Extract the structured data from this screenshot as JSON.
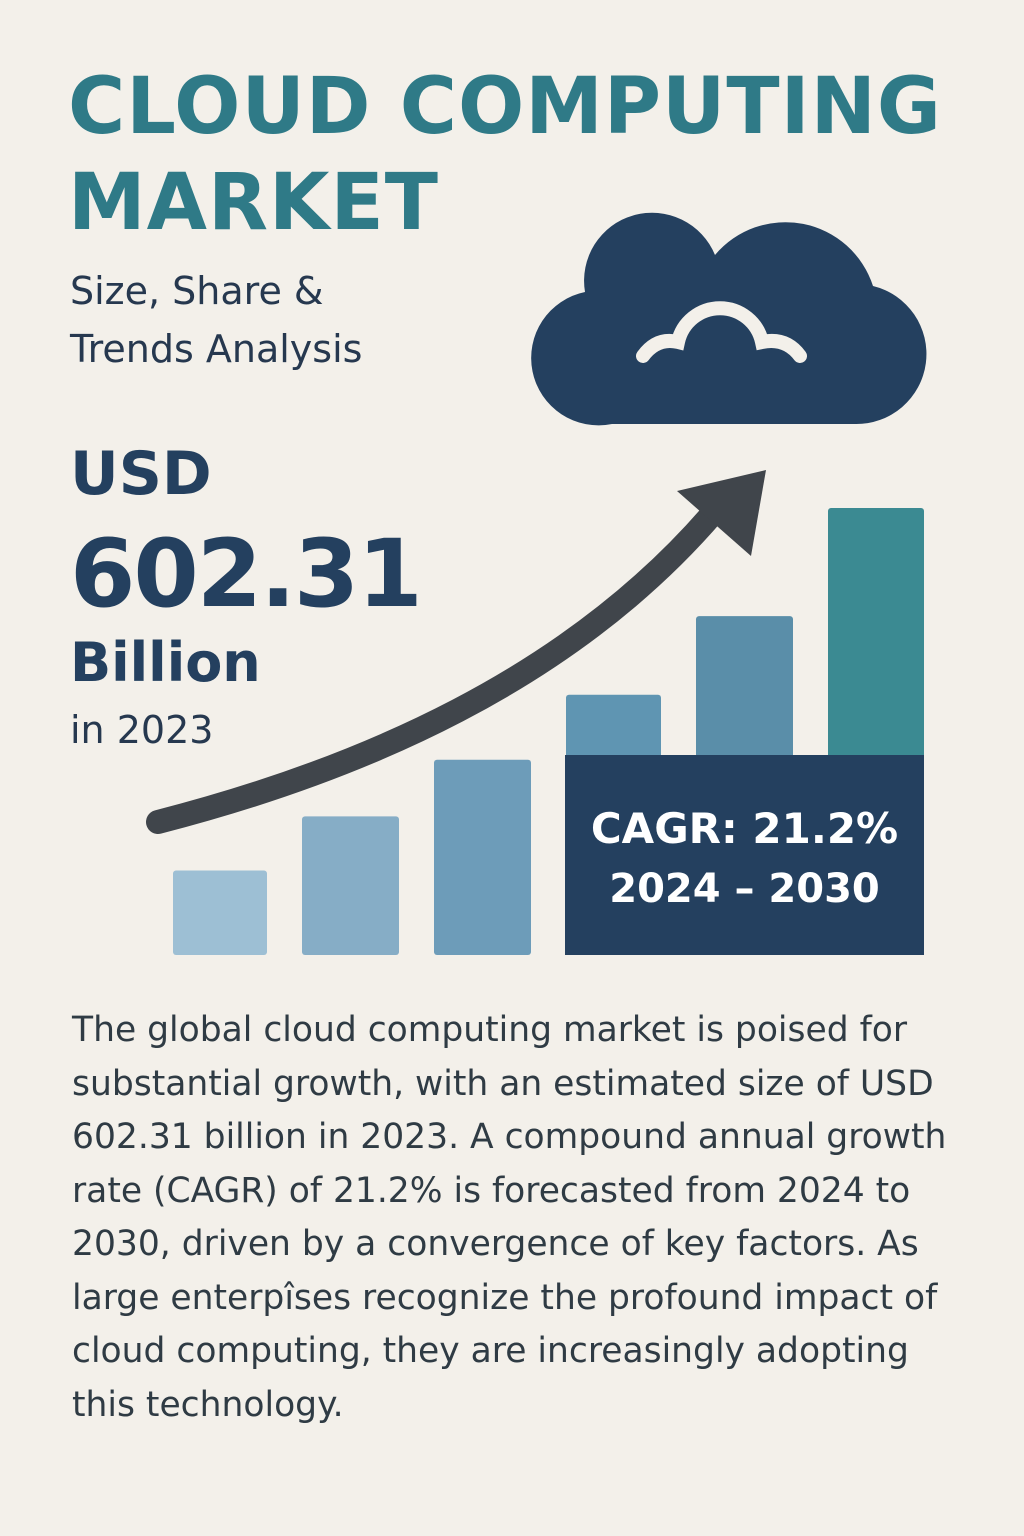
{
  "header": {
    "title_line1": "CLOUD COMPUTING",
    "title_line2": "MARKET",
    "subtitle_line1": "Size, Share &",
    "subtitle_line2": "Trends Analysis"
  },
  "market_size": {
    "currency": "USD",
    "value": "602.31",
    "unit": "Billion",
    "year": "in 2023"
  },
  "cagr": {
    "rate": "CAGR: 21.2%",
    "period": "2024 – 2030"
  },
  "description": "The global cloud computing market is poised for substantial growth, with an estimated size of USD 602.31 billion in 2023. A compound annual growth rate (CAGR) of 21.2% is forecasted from 2024 to 2030, driven by a convergence of key factors. As large enterpîses recognize the profound impact of cloud computing, they are increasingly adopting this technology.",
  "icons": {
    "cloud": "cloud-icon",
    "arrow": "growth-arrow-icon"
  },
  "colors": {
    "title": "#2f7a87",
    "navy": "#24405f",
    "text": "#2f3b44",
    "background": "#f3f0ea",
    "arrow": "#40454b"
  },
  "chart_data": {
    "type": "bar",
    "values": [
      1,
      1.64,
      2.31,
      3.08,
      4.01,
      5.29
    ],
    "colors": [
      "#9dbfd4",
      "#86adc6",
      "#6d9cb9",
      "#5f95b2",
      "#5a8ea9",
      "#3b8a92"
    ]
  }
}
